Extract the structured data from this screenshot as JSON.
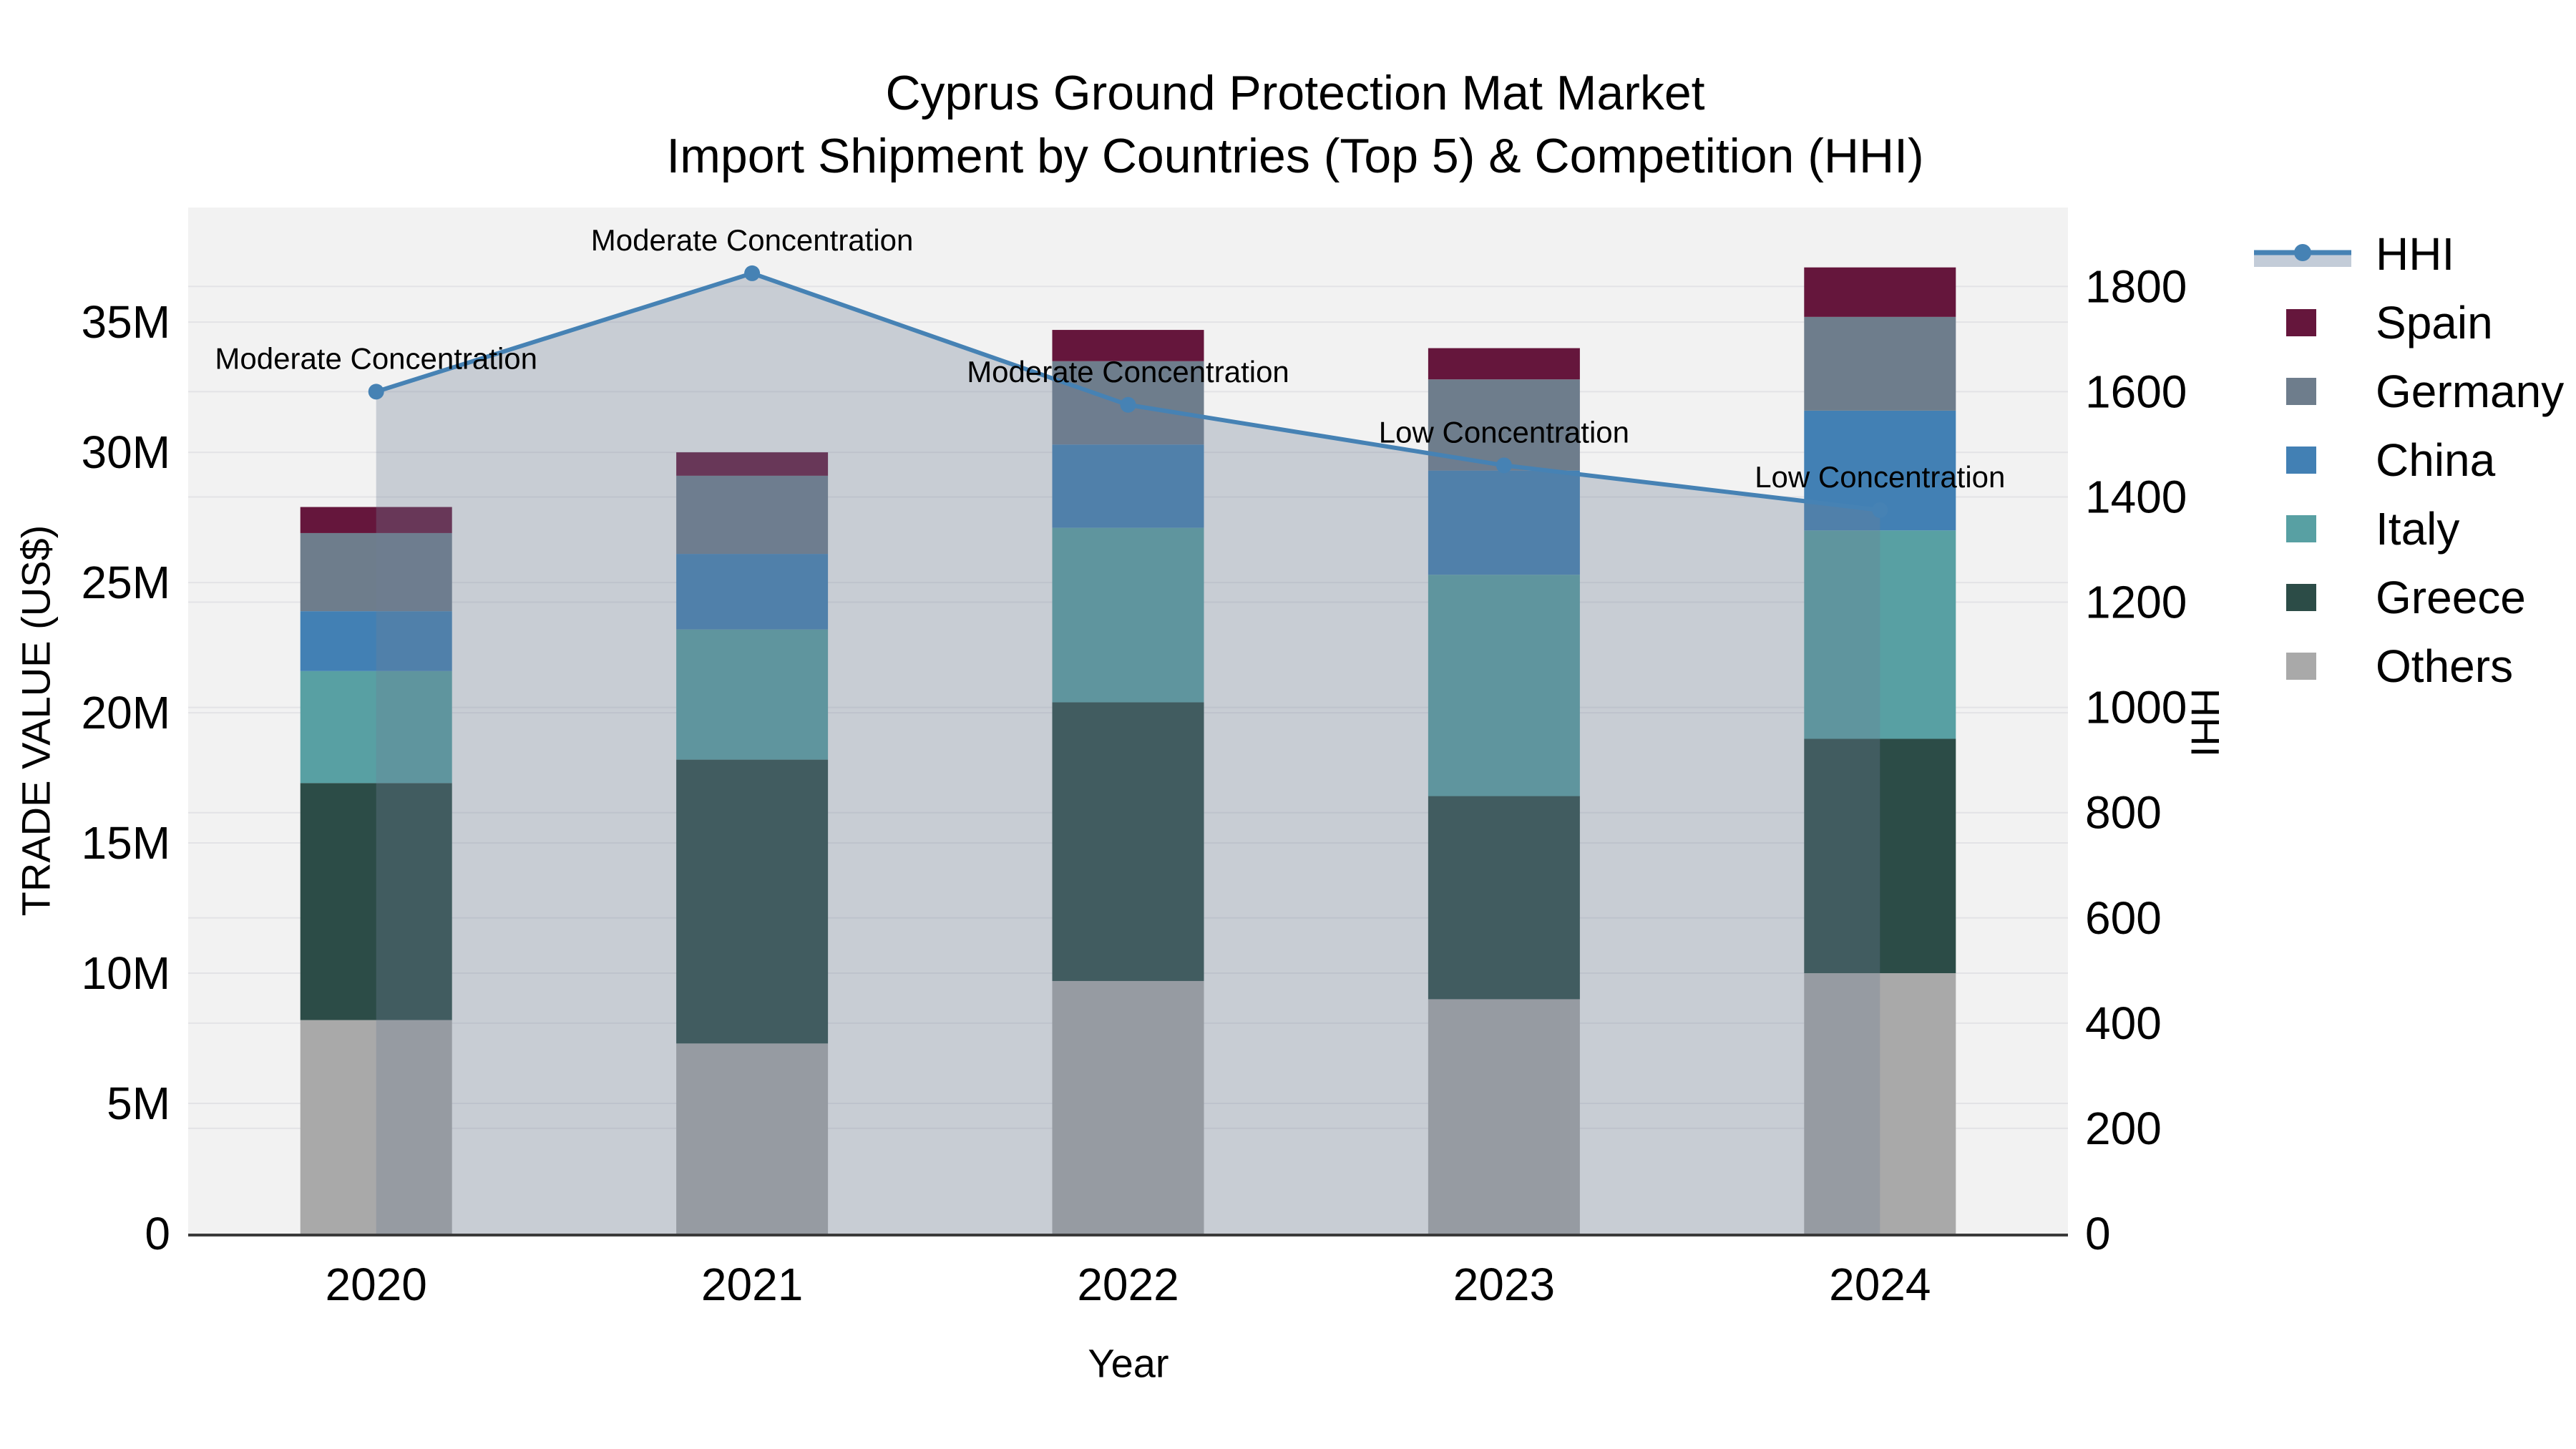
{
  "title": {
    "line1": "Cyprus Ground Protection Mat Market",
    "line2": "Import Shipment by Countries (Top 5) & Competition (HHI)"
  },
  "axes": {
    "left": {
      "title": "TRADE VALUE (US$)",
      "unit": "million US$",
      "ticks": [
        {
          "label": "0",
          "value": 0
        },
        {
          "label": "5M",
          "value": 5
        },
        {
          "label": "10M",
          "value": 10
        },
        {
          "label": "15M",
          "value": 15
        },
        {
          "label": "20M",
          "value": 20
        },
        {
          "label": "25M",
          "value": 25
        },
        {
          "label": "30M",
          "value": 30
        },
        {
          "label": "35M",
          "value": 35
        }
      ]
    },
    "right": {
      "title": "HHI",
      "ticks": [
        {
          "label": "0",
          "value": 0
        },
        {
          "label": "200",
          "value": 200
        },
        {
          "label": "400",
          "value": 400
        },
        {
          "label": "600",
          "value": 600
        },
        {
          "label": "800",
          "value": 800
        },
        {
          "label": "1000",
          "value": 1000
        },
        {
          "label": "1200",
          "value": 1200
        },
        {
          "label": "1400",
          "value": 1400
        },
        {
          "label": "1600",
          "value": 1600
        },
        {
          "label": "1800",
          "value": 1800
        }
      ]
    },
    "x": {
      "title": "Year",
      "categories": [
        "2020",
        "2021",
        "2022",
        "2023",
        "2024"
      ]
    }
  },
  "legend": {
    "items": [
      {
        "id": "hhi",
        "label": "HHI",
        "type": "line",
        "color": "#4682b4",
        "band_color": "#c3ccd8"
      },
      {
        "id": "spain",
        "label": "Spain",
        "type": "swatch",
        "color": "#65163c"
      },
      {
        "id": "germany",
        "label": "Germany",
        "type": "swatch",
        "color": "#6e7d8c"
      },
      {
        "id": "china",
        "label": "China",
        "type": "swatch",
        "color": "#4280b4"
      },
      {
        "id": "italy",
        "label": "Italy",
        "type": "swatch",
        "color": "#58a0a3"
      },
      {
        "id": "greece",
        "label": "Greece",
        "type": "swatch",
        "color": "#2c4c47"
      },
      {
        "id": "others",
        "label": "Others",
        "type": "swatch",
        "color": "#a9a9a9"
      }
    ]
  },
  "chart_data": {
    "type": "bar",
    "subtype": "stacked-bar-with-dual-axis-line",
    "title": "Cyprus Ground Protection Mat Market — Import Shipment by Countries (Top 5) & Competition (HHI)",
    "xlabel": "Year",
    "ylabel_left": "TRADE VALUE (US$)",
    "ylabel_right": "HHI",
    "categories": [
      "2020",
      "2021",
      "2022",
      "2023",
      "2024"
    ],
    "bar_unit": "million US$",
    "stack_bottom_to_top": [
      "Others",
      "Greece",
      "Italy",
      "China",
      "Germany",
      "Spain"
    ],
    "series": [
      {
        "name": "Others",
        "axis": "left",
        "color": "#a9a9a9",
        "values": [
          8.2,
          7.3,
          9.7,
          9.0,
          10.0
        ]
      },
      {
        "name": "Greece",
        "axis": "left",
        "color": "#2c4c47",
        "values": [
          9.1,
          10.9,
          10.7,
          7.8,
          9.0
        ]
      },
      {
        "name": "Italy",
        "axis": "left",
        "color": "#58a0a3",
        "values": [
          4.3,
          5.0,
          6.7,
          8.5,
          8.0
        ]
      },
      {
        "name": "China",
        "axis": "left",
        "color": "#4280b4",
        "values": [
          2.3,
          2.9,
          3.2,
          4.0,
          4.6
        ]
      },
      {
        "name": "Germany",
        "axis": "left",
        "color": "#6e7d8c",
        "values": [
          3.0,
          3.0,
          3.2,
          3.5,
          3.6
        ]
      },
      {
        "name": "Spain",
        "axis": "left",
        "color": "#65163c",
        "values": [
          1.0,
          0.9,
          1.2,
          1.2,
          1.9
        ]
      }
    ],
    "bar_totals": [
      27.9,
      30.0,
      34.7,
      34.0,
      37.1
    ],
    "line_series": {
      "name": "HHI",
      "axis": "right",
      "color": "#4682b4",
      "area_color": "#6f8096",
      "area_opacity": 0.32,
      "values": [
        1600,
        1825,
        1575,
        1460,
        1375
      ]
    },
    "annotations": [
      "Moderate Concentration",
      "Moderate Concentration",
      "Moderate Concentration",
      "Low Concentration",
      "Low Concentration"
    ],
    "ylim_left": [
      0,
      39.4
    ],
    "ylim_right": [
      0,
      1950
    ],
    "grid": "both-axes-light",
    "legend_position": "right"
  },
  "colors": {
    "page_bg": "#ffffff",
    "plot_bg": "#f2f2f2",
    "grid": "#e3e3e6",
    "axis_line": "#3a3a3a",
    "text": "#000000"
  }
}
